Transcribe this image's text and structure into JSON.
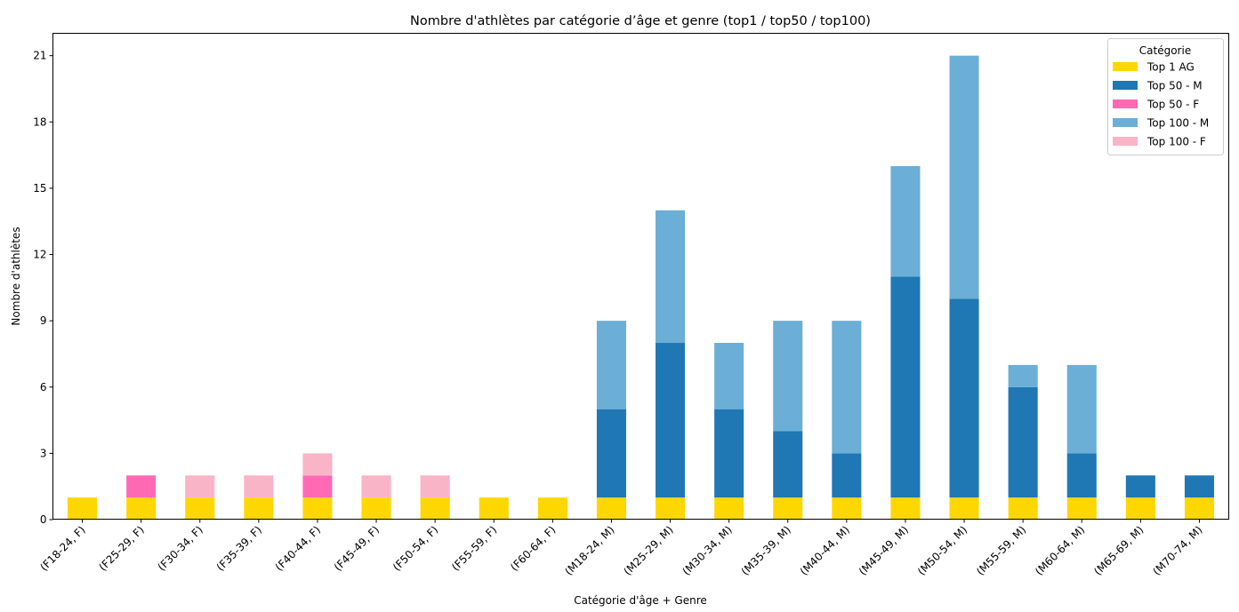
{
  "chart_data": {
    "type": "bar",
    "stacked": true,
    "title": "Nombre d'athlètes par catégorie d’âge et genre (top1 / top50 / top100)",
    "xlabel": "Catégorie d'âge + Genre",
    "ylabel": "Nombre d'athlètes",
    "ylim": [
      0,
      22
    ],
    "yticks": [
      0,
      3,
      6,
      9,
      12,
      15,
      18,
      21
    ],
    "grid": false,
    "legend": {
      "title": "Catégorie",
      "placement": "top-right"
    },
    "categories": [
      "(F18-24, F)",
      "(F25-29, F)",
      "(F30-34, F)",
      "(F35-39, F)",
      "(F40-44, F)",
      "(F45-49, F)",
      "(F50-54, F)",
      "(F55-59, F)",
      "(F60-64, F)",
      "(M18-24, M)",
      "(M25-29, M)",
      "(M30-34, M)",
      "(M35-39, M)",
      "(M40-44, M)",
      "(M45-49, M)",
      "(M50-54, M)",
      "(M55-59, M)",
      "(M60-64, M)",
      "(M65-69, M)",
      "(M70-74, M)"
    ],
    "series": [
      {
        "name": "Top 1 AG",
        "color": "#FFD700",
        "values": [
          1,
          1,
          1,
          1,
          1,
          1,
          1,
          1,
          1,
          1,
          1,
          1,
          1,
          1,
          1,
          1,
          1,
          1,
          1,
          1
        ]
      },
      {
        "name": "Top 50 - M",
        "color": "#1F77B4",
        "values": [
          0,
          0,
          0,
          0,
          0,
          0,
          0,
          0,
          0,
          4,
          7,
          4,
          3,
          2,
          10,
          9,
          5,
          2,
          1,
          1
        ]
      },
      {
        "name": "Top 50 - F",
        "color": "#FF69B4",
        "values": [
          0,
          1,
          0,
          0,
          1,
          0,
          0,
          0,
          0,
          0,
          0,
          0,
          0,
          0,
          0,
          0,
          0,
          0,
          0,
          0
        ]
      },
      {
        "name": "Top 100 - M",
        "color": "#6BAED6",
        "values": [
          0,
          0,
          0,
          0,
          0,
          0,
          0,
          0,
          0,
          4,
          6,
          3,
          5,
          6,
          5,
          11,
          1,
          4,
          0,
          0
        ]
      },
      {
        "name": "Top 100 - F",
        "color": "#F9B4C8",
        "values": [
          0,
          0,
          1,
          1,
          1,
          1,
          1,
          0,
          0,
          0,
          0,
          0,
          0,
          0,
          0,
          0,
          0,
          0,
          0,
          0
        ]
      }
    ]
  }
}
